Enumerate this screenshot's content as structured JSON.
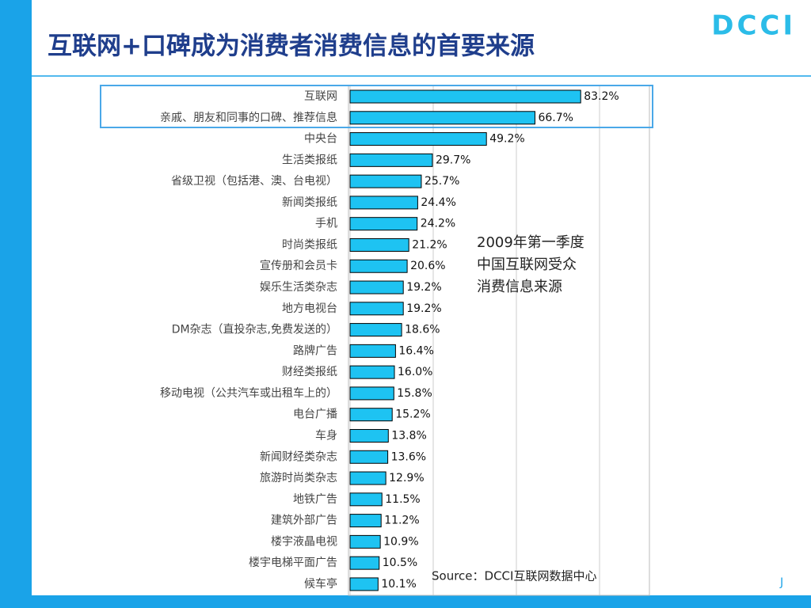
{
  "title": "互联网+口碑成为消费者消费信息的首要来源",
  "logo": "DCCI",
  "chart_data": {
    "type": "bar",
    "orientation": "horizontal",
    "categories": [
      "互联网",
      "亲戚、朋友和同事的口碑、推荐信息",
      "中央台",
      "生活类报纸",
      "省级卫视（包括港、澳、台电视）",
      "新闻类报纸",
      "手机",
      "时尚类报纸",
      "宣传册和会员卡",
      "娱乐生活类杂志",
      "地方电视台",
      "DM杂志（直投杂志,免费发送的）",
      "路牌广告",
      "财经类报纸",
      "移动电视（公共汽车或出租车上的）",
      "电台广播",
      "车身",
      "新闻财经类杂志",
      "旅游时尚类杂志",
      "地铁广告",
      "建筑外部广告",
      "楼宇液晶电视",
      "楼宇电梯平面广告",
      "候车亭"
    ],
    "values": [
      83.2,
      66.7,
      49.2,
      29.7,
      25.7,
      24.4,
      24.2,
      21.2,
      20.6,
      19.2,
      19.2,
      18.6,
      16.4,
      16.0,
      15.8,
      15.2,
      13.8,
      13.6,
      12.9,
      11.5,
      11.2,
      10.9,
      10.5,
      10.1
    ],
    "value_labels": [
      "83.2%",
      "66.7%",
      "49.2%",
      "29.7%",
      "25.7%",
      "24.4%",
      "24.2%",
      "21.2%",
      "20.6%",
      "19.2%",
      "19.2%",
      "18.6%",
      "16.4%",
      "16.0%",
      "15.8%",
      "15.2%",
      "13.8%",
      "13.6%",
      "12.9%",
      "11.5%",
      "11.2%",
      "10.9%",
      "10.5%",
      "10.1%"
    ],
    "color": "#1ec3f2",
    "xlim": [
      0,
      108
    ],
    "xticks": [
      0,
      30,
      60,
      90
    ],
    "grid": true,
    "annotation": [
      "2009年第一季度",
      "中国互联网受众",
      "消费信息来源"
    ],
    "source": "Source：DCCI互联网数据中心"
  },
  "page_mark": "J"
}
